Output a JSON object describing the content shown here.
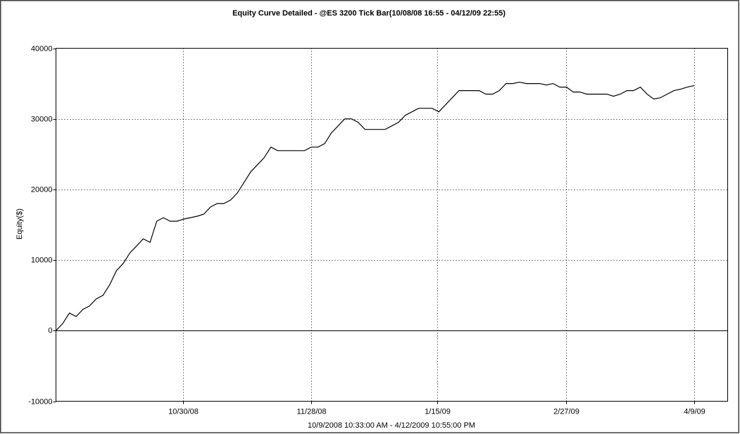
{
  "chart_data": {
    "type": "line",
    "title": "Equity Curve Detailed - @ES 3200 Tick Bar(10/08/08 16:55 - 04/12/09 22:55)",
    "x_label": "10/9/2008 10:33:00 AM - 4/12/2009 10:55:00 PM",
    "y_label": "Equity($)",
    "x": [
      0,
      1,
      2,
      3,
      4,
      5,
      6,
      7,
      8,
      9,
      10,
      11,
      12,
      13,
      14,
      15,
      16,
      17,
      18,
      19,
      20,
      21,
      22,
      23,
      24,
      25,
      26,
      27,
      28,
      29,
      30,
      31,
      32,
      33,
      34,
      35,
      36,
      37,
      38,
      39,
      40,
      41,
      42,
      43,
      44,
      45,
      46,
      47,
      48,
      49,
      50,
      51,
      52,
      53,
      54,
      55,
      56,
      57,
      58,
      59,
      60,
      61,
      62,
      63,
      64,
      65,
      66,
      67,
      68,
      69,
      70,
      71,
      72,
      73,
      74,
      75,
      76,
      77,
      78,
      79,
      80,
      81,
      82,
      83,
      84,
      85,
      86,
      87,
      88,
      89,
      90,
      91,
      92,
      93,
      94,
      95
    ],
    "series": [
      {
        "name": "Equity",
        "color": "#000000",
        "values": [
          0,
          1000,
          2500,
          2000,
          3000,
          3500,
          4500,
          5000,
          6500,
          8500,
          9500,
          11000,
          12000,
          13000,
          12500,
          15500,
          16000,
          15500,
          15500,
          15800,
          16000,
          16200,
          16500,
          17500,
          18000,
          18000,
          18500,
          19500,
          21000,
          22500,
          23500,
          24500,
          26000,
          25500,
          25500,
          25500,
          25500,
          25500,
          26000,
          26000,
          26500,
          28000,
          29000,
          30000,
          30000,
          29500,
          28500,
          28500,
          28500,
          28500,
          29000,
          29500,
          30500,
          31000,
          31500,
          31500,
          31500,
          31000,
          32000,
          33000,
          34000,
          34000,
          34000,
          34000,
          33500,
          33500,
          34000,
          35000,
          35000,
          35200,
          35000,
          35000,
          35000,
          34800,
          35000,
          34500,
          34500,
          33800,
          33800,
          33500,
          33500,
          33500,
          33500,
          33200,
          33500,
          34000,
          34000,
          34500,
          33500,
          32800,
          33000,
          33500,
          34000,
          34200,
          34500,
          34700
        ]
      }
    ],
    "xlim": [
      0,
      100
    ],
    "xticks": [
      {
        "value": 18.9,
        "label": "10/30/08"
      },
      {
        "value": 38.0,
        "label": "11/28/08"
      },
      {
        "value": 56.8,
        "label": "1/15/09"
      },
      {
        "value": 75.9,
        "label": "2/27/09"
      },
      {
        "value": 95.0,
        "label": "4/9/09"
      }
    ],
    "ylim": [
      -10000,
      40000
    ],
    "yticks": [
      -10000,
      0,
      10000,
      20000,
      30000,
      40000
    ],
    "grid": true
  }
}
